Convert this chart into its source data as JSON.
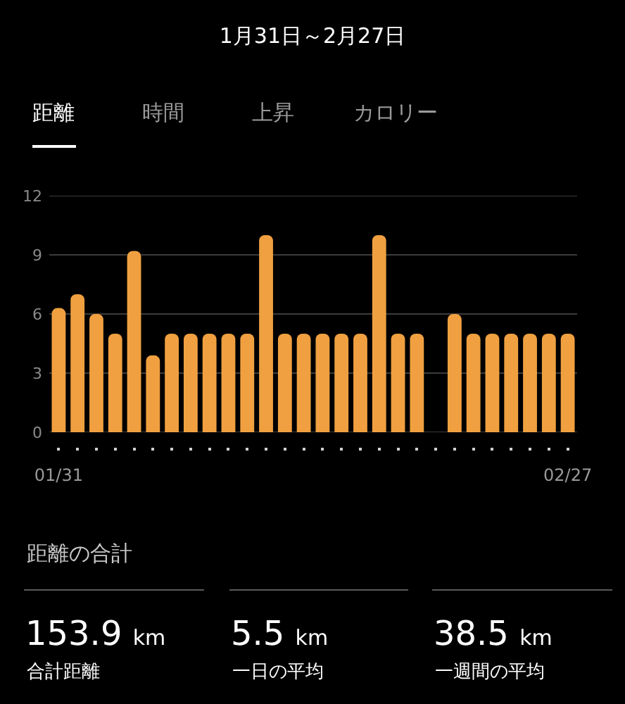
{
  "chart_data": {
    "type": "bar",
    "title": "1月31日～2月27日",
    "categories": [
      "01/31",
      null,
      null,
      null,
      null,
      null,
      null,
      null,
      null,
      null,
      null,
      null,
      null,
      null,
      null,
      null,
      null,
      null,
      null,
      null,
      null,
      null,
      null,
      null,
      null,
      null,
      null,
      "02/27"
    ],
    "values": [
      6.3,
      7.0,
      6.0,
      5.0,
      9.2,
      3.9,
      5.0,
      5.0,
      5.0,
      5.0,
      5.0,
      10.0,
      5.0,
      5.0,
      5.0,
      5.0,
      5.0,
      10.0,
      5.0,
      5.0,
      null,
      6.0,
      5.0,
      5.0,
      5.0,
      5.0,
      5.0,
      5.0
    ],
    "color": "#f0a040",
    "ylim": [
      0,
      12
    ],
    "yticks": [
      0,
      3,
      6,
      9,
      12
    ],
    "grid": "y",
    "annotations": [
      "距離",
      "時間",
      "上昇",
      "カロリー",
      "距離の合計",
      "153.9 km",
      "合計距離",
      "5.5 km",
      "一日の平均",
      "38.5 km",
      "一週間の平均"
    ]
  }
}
